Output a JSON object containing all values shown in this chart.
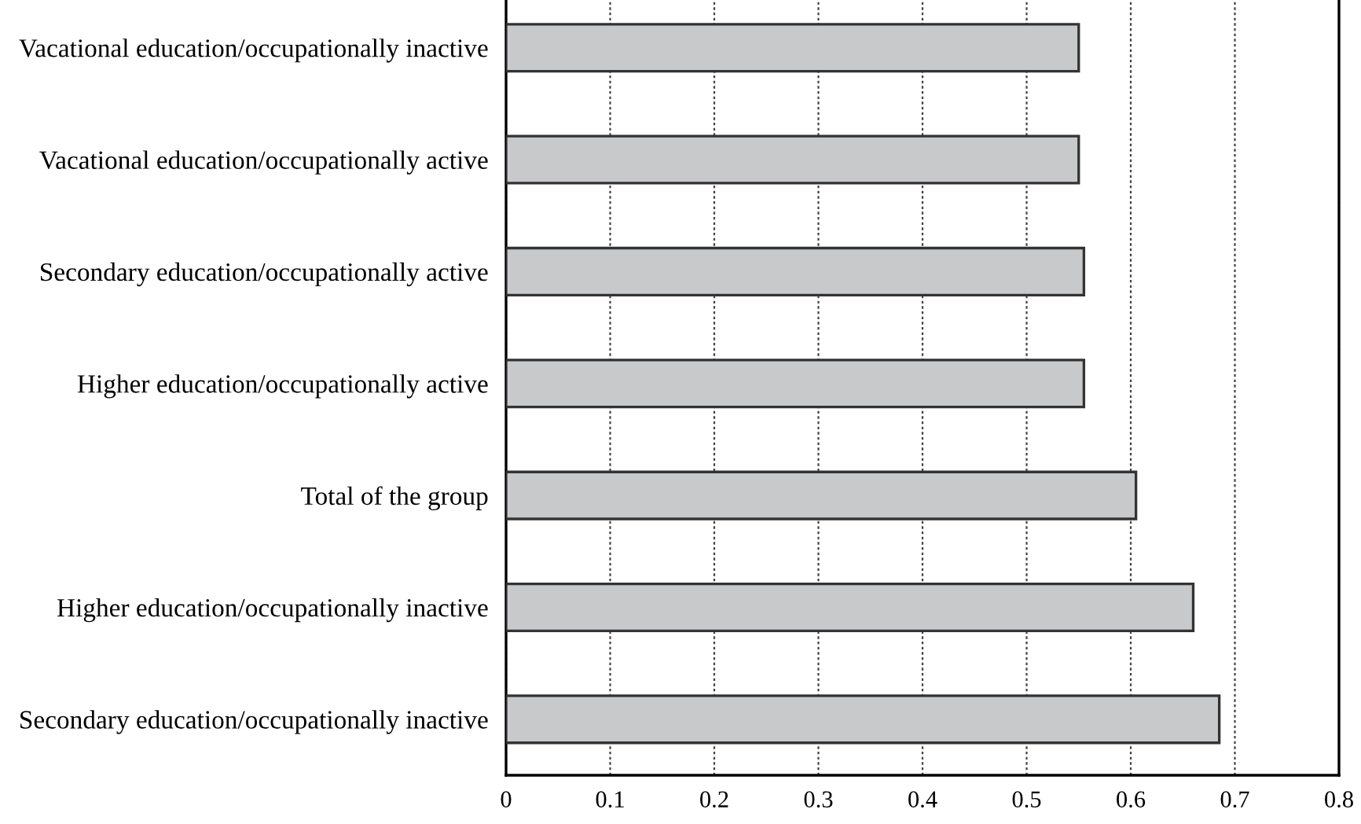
{
  "chart_data": {
    "type": "bar",
    "orientation": "horizontal",
    "categories": [
      "Vacational education/occupationally inactive",
      "Vacational education/occupationally active",
      "Secondary education/occupationally active",
      "Higher education/occupationally active",
      "Total of the group",
      "Higher education/occupationally inactive",
      "Secondary education/occupationally inactive"
    ],
    "values": [
      0.55,
      0.55,
      0.555,
      0.555,
      0.605,
      0.66,
      0.685
    ],
    "color": "#c8c9cb",
    "xlim": [
      0,
      0.8
    ],
    "xticks": [
      0,
      0.1,
      0.2,
      0.3,
      0.4,
      0.5,
      0.6,
      0.7,
      0.8
    ],
    "grid": "x"
  }
}
